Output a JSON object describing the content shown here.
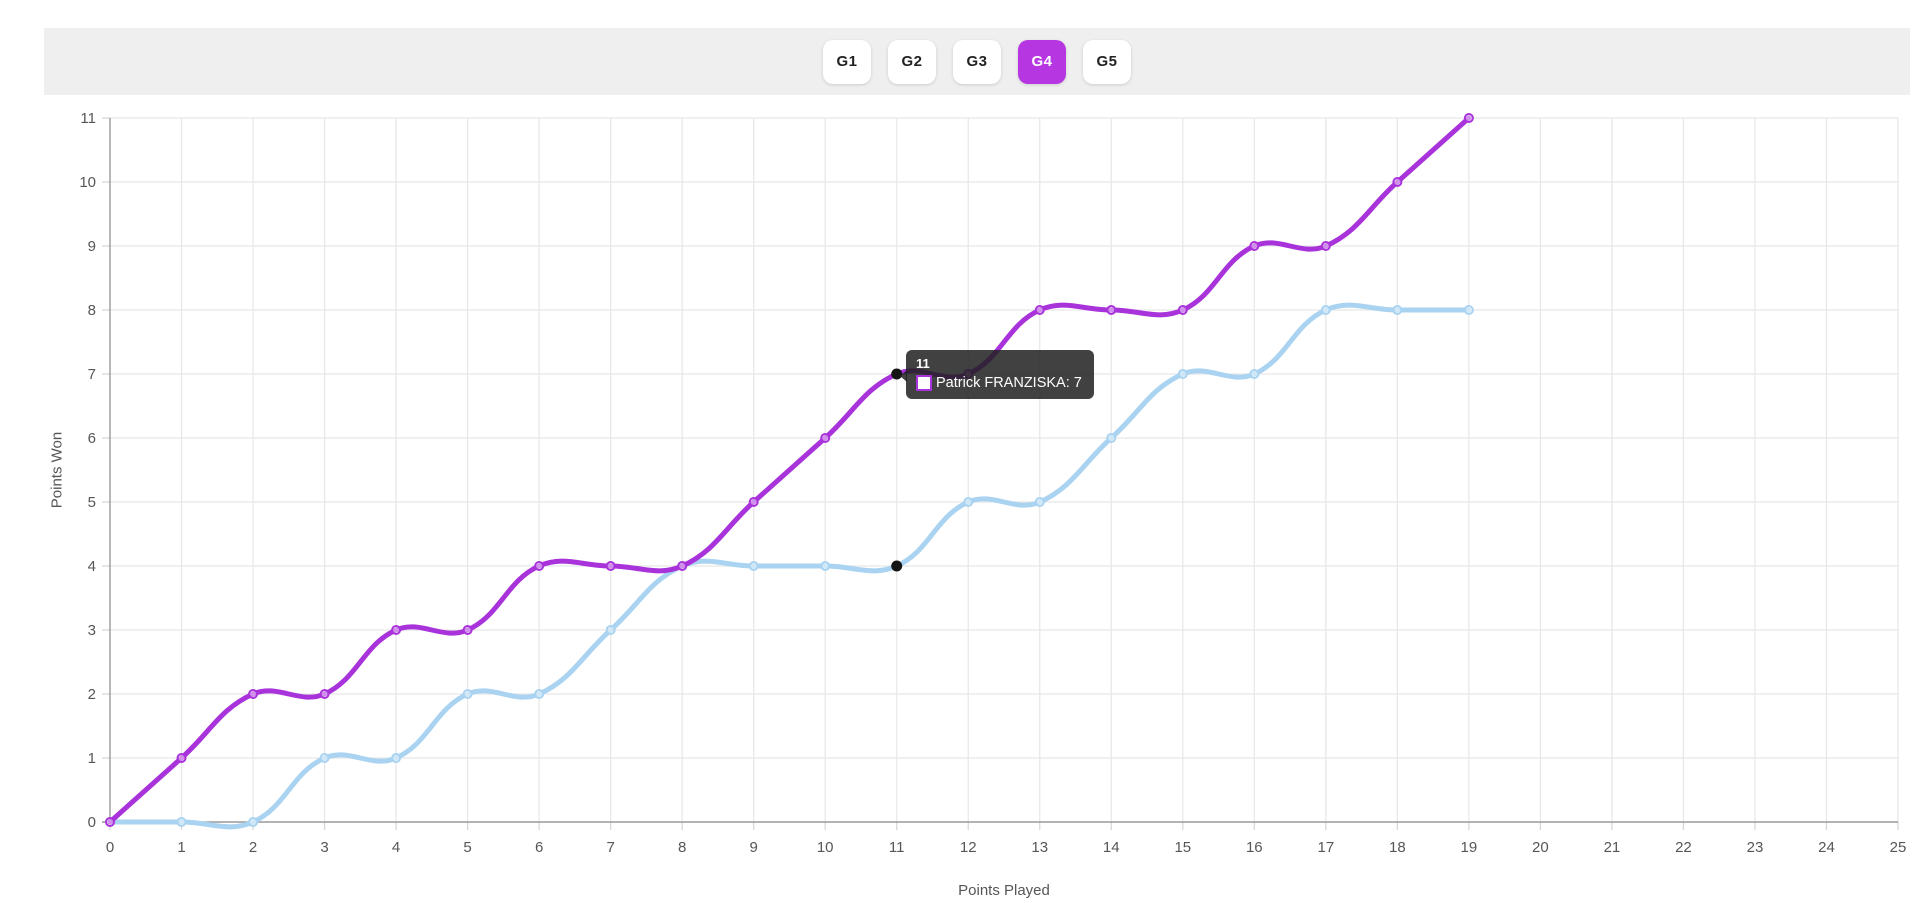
{
  "tabs": {
    "items": [
      {
        "label": "G1",
        "active": false
      },
      {
        "label": "G2",
        "active": false
      },
      {
        "label": "G3",
        "active": false
      },
      {
        "label": "G4",
        "active": true
      },
      {
        "label": "G5",
        "active": false
      }
    ]
  },
  "colors": {
    "accent": "#b637e2",
    "tab_bar_bg": "#efefef",
    "series_purple": "#a933db",
    "series_blue": "#a9d3f1",
    "grid": "#e7e7e7",
    "axis": "#9a9a9a",
    "tick_label": "#565656",
    "hover_point": "#151515",
    "tooltip_bg": "#202020"
  },
  "chart_data": {
    "type": "line",
    "xlabel": "Points Played",
    "ylabel": "Points Won",
    "xlim": [
      0,
      25
    ],
    "ylim": [
      0,
      11
    ],
    "x_tick_step": 1,
    "y_tick_step": 1,
    "grid": true,
    "x": [
      0,
      1,
      2,
      3,
      4,
      5,
      6,
      7,
      8,
      9,
      10,
      11,
      12,
      13,
      14,
      15,
      16,
      17,
      18,
      19
    ],
    "series": [
      {
        "name": "Patrick FRANZISKA",
        "color": "#a933db",
        "values": [
          0,
          1,
          2,
          2,
          3,
          3,
          4,
          4,
          4,
          5,
          6,
          7,
          7,
          8,
          8,
          8,
          9,
          9,
          10,
          11
        ]
      },
      {
        "name": "",
        "color": "#a9d3f1",
        "values": [
          0,
          0,
          0,
          1,
          1,
          2,
          2,
          3,
          4,
          4,
          4,
          4,
          5,
          5,
          6,
          7,
          7,
          8,
          8,
          8
        ]
      }
    ],
    "hover": {
      "x": 11,
      "point_values": [
        7,
        4
      ]
    },
    "tooltip": {
      "title": "11",
      "text": "Patrick FRANZISKA: 7"
    }
  }
}
